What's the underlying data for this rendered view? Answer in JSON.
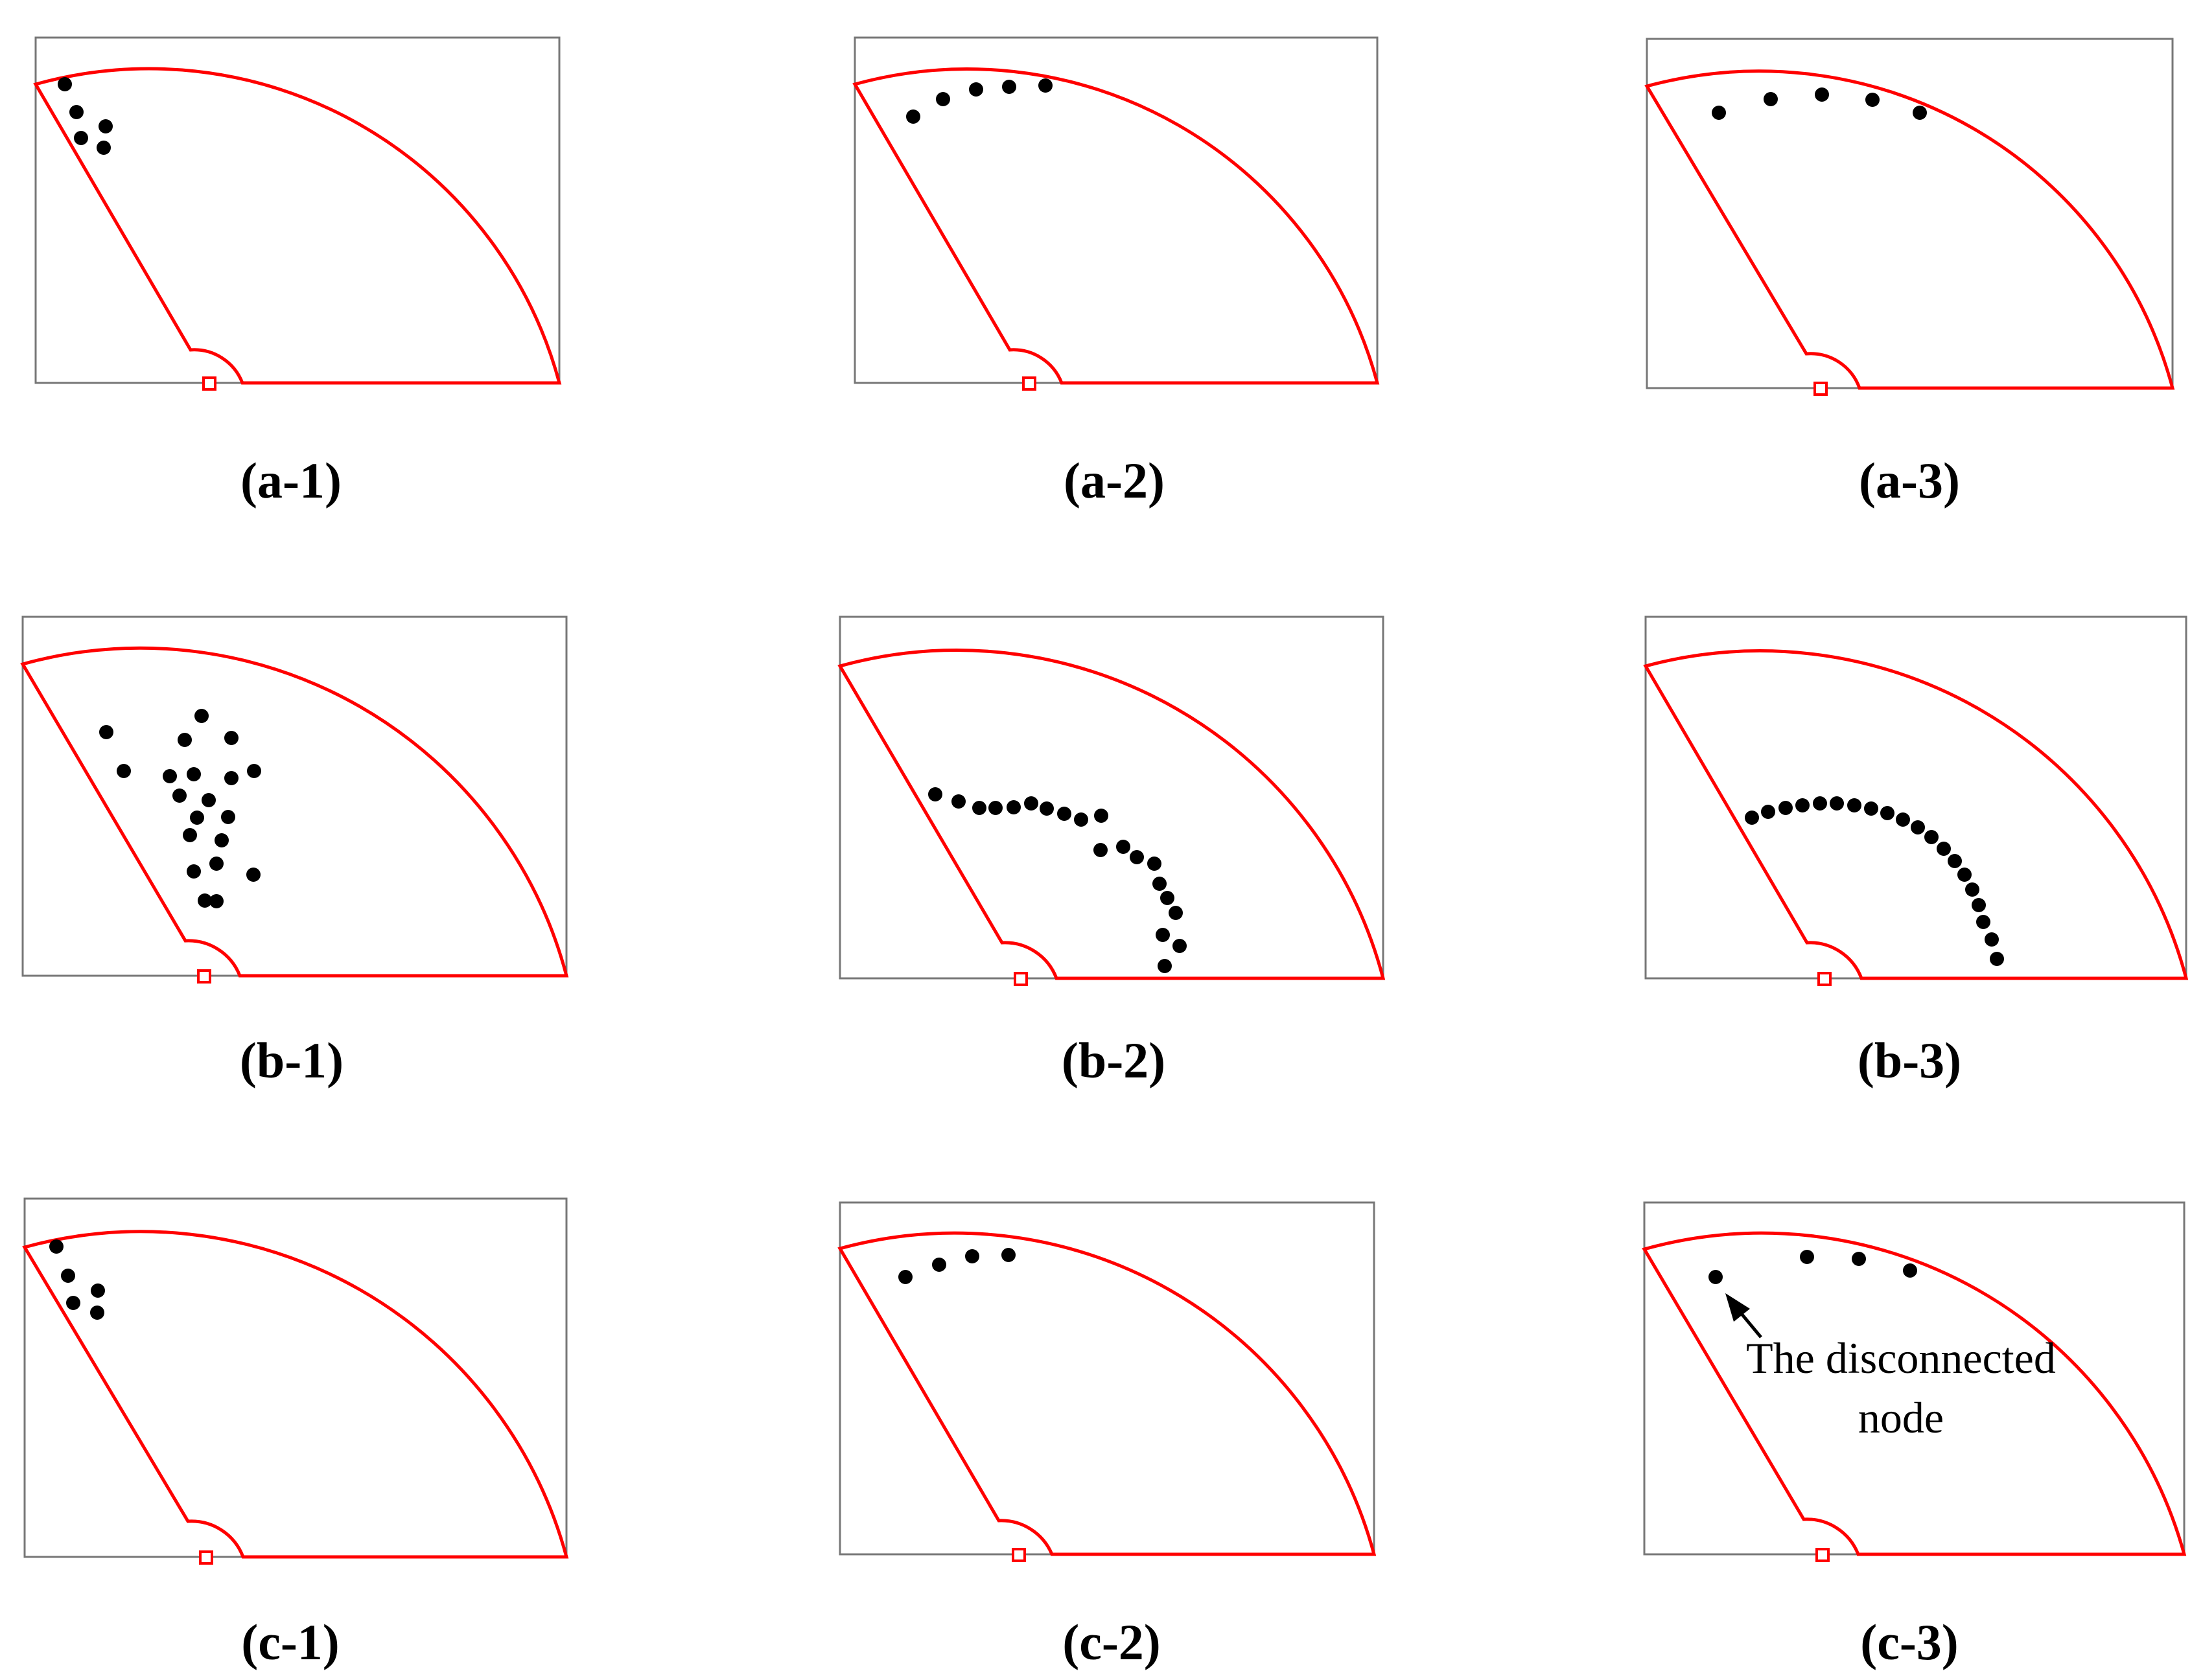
{
  "panels": [
    {
      "id": "a-1",
      "label": "(a-1)",
      "node_count": 5
    },
    {
      "id": "a-2",
      "label": "(a-2)",
      "node_count": 5
    },
    {
      "id": "a-3",
      "label": "(a-3)",
      "node_count": 5
    },
    {
      "id": "b-1",
      "label": "(b-1)",
      "node_count": 20
    },
    {
      "id": "b-2",
      "label": "(b-2)",
      "node_count": 20
    },
    {
      "id": "b-3",
      "label": "(b-3)",
      "node_count": 20
    },
    {
      "id": "c-1",
      "label": "(c-1)",
      "node_count": 5
    },
    {
      "id": "c-2",
      "label": "(c-2)",
      "node_count": 4
    },
    {
      "id": "c-3",
      "label": "(c-3)",
      "node_count": 4
    }
  ],
  "annotation": {
    "panel": "c-3",
    "line1": "The disconnected",
    "line2": "node"
  },
  "colors": {
    "sector_outline": "#ff0000",
    "panel_frame": "#777777",
    "node": "#000000"
  }
}
